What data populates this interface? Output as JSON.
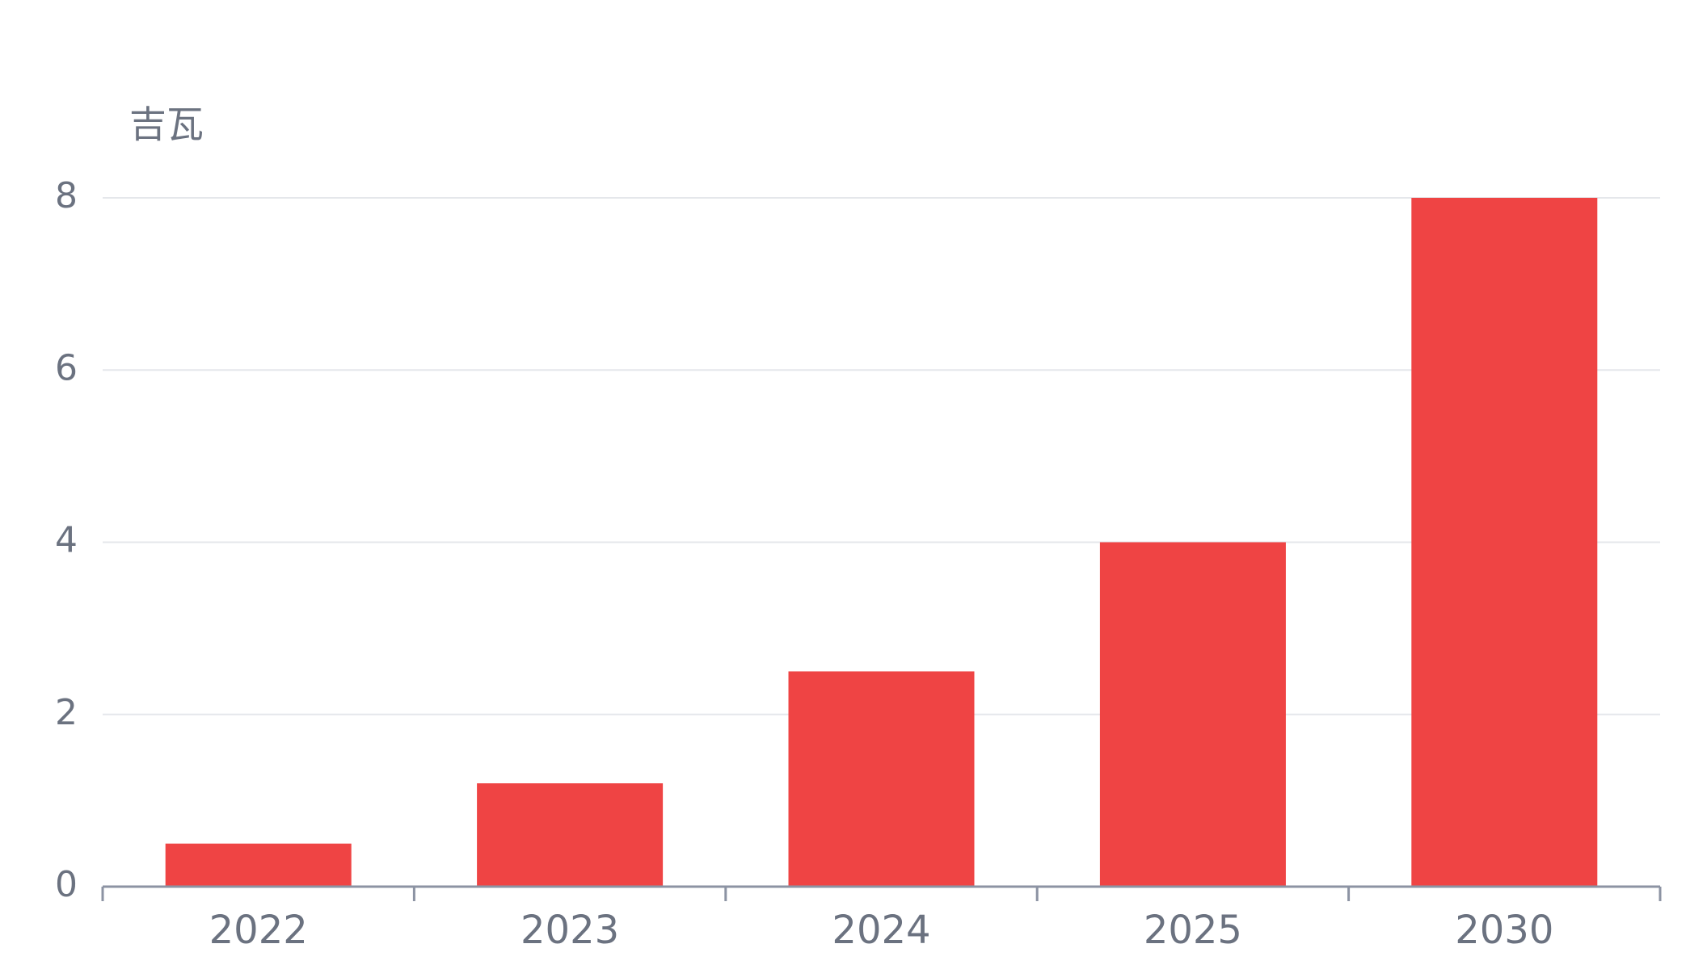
{
  "chart_data": {
    "type": "bar",
    "title": "",
    "xlabel": "",
    "ylabel": "吉瓦",
    "categories": [
      "2022",
      "2023",
      "2024",
      "2025",
      "2030"
    ],
    "series": [
      {
        "values": [
          0.5,
          1.2,
          2.5,
          4,
          8
        ],
        "color": "#EF4444"
      }
    ],
    "ylim": [
      0,
      8
    ],
    "yticks": [
      0,
      2,
      4,
      6,
      8
    ],
    "grid": true,
    "legend": "none"
  }
}
